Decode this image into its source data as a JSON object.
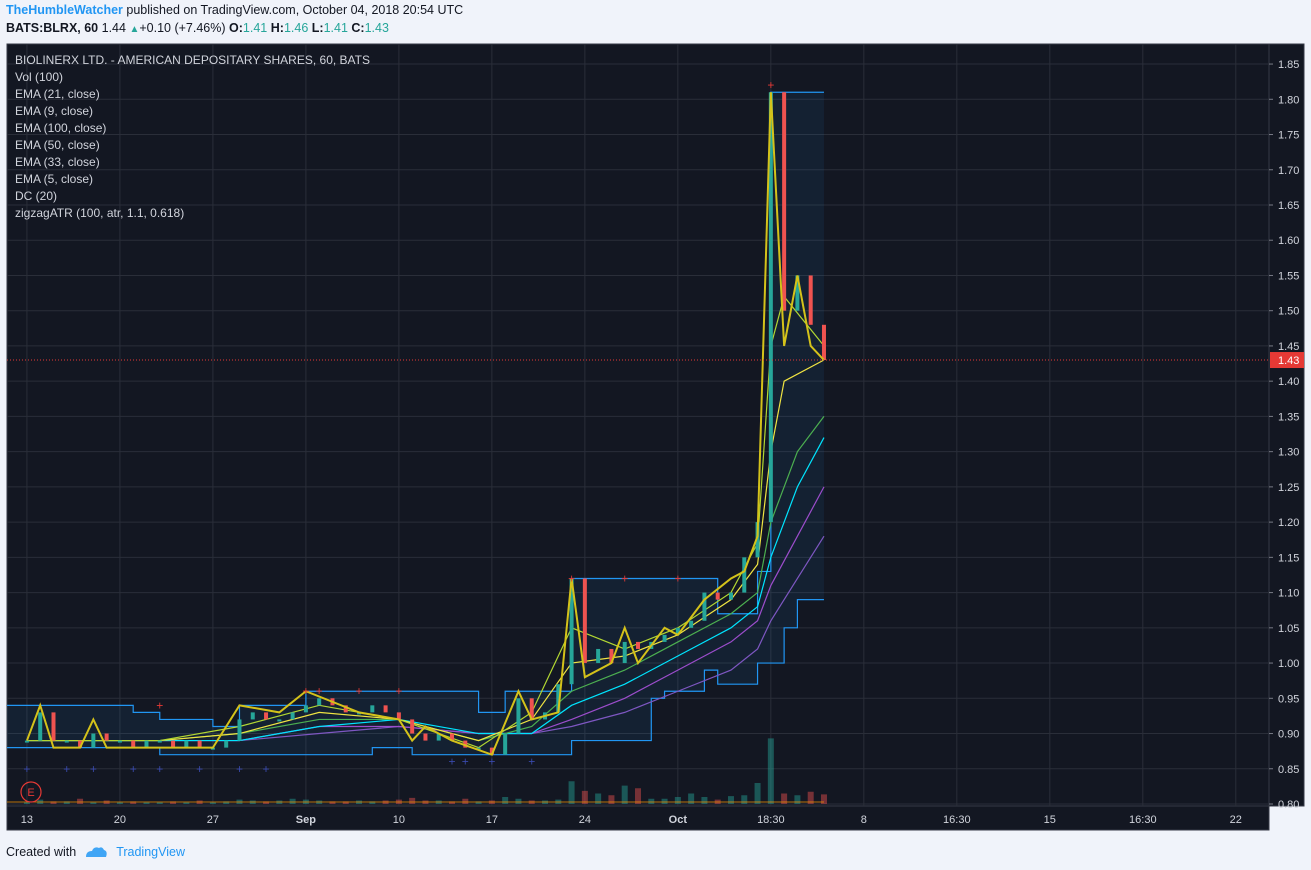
{
  "header": {
    "publisher": "TheHumbleWatcher",
    "published_text": " published on TradingView.com, October 04, 2018 20:54 UTC",
    "symbol": "BATS:BLRX, 60",
    "last": "1.44",
    "change": "+0.10 (+7.46%)",
    "open_label": "O:",
    "open": "1.41",
    "high_label": "H:",
    "high": "1.46",
    "low_label": "L:",
    "low": "1.41",
    "close_label": "C:",
    "close": "1.43"
  },
  "legend": [
    "BIOLINERX LTD. - AMERICAN DEPOSITARY SHARES, 60, BATS",
    "Vol (100)",
    "EMA (21, close)",
    "EMA (9, close)",
    "EMA (100, close)",
    "EMA (50, close)",
    "EMA (33, close)",
    "EMA (5, close)",
    "DC (20)",
    "zigzagATR (100, atr, 1.1, 0.618)"
  ],
  "price_tag": "1.43",
  "earnings_marker": "E",
  "footer": {
    "created_with": "Created with",
    "brand": "TradingView"
  },
  "colors": {
    "background": "#131722",
    "grid": "#2a2e39",
    "up": "#26a69a",
    "down": "#ef5350",
    "donchian": "#2196f3",
    "zigzag": "#d4c21a",
    "ema5": "#b2d732",
    "ema9": "#f0e442",
    "ema21": "#4caf50",
    "ema33": "#00e5ff",
    "ema50": "#9c4dcc",
    "ema100": "#7e57c2",
    "high_marker": "#e53935",
    "low_marker": "#3949ab"
  },
  "chart_data": {
    "type": "line",
    "ylim": [
      0.8,
      1.86
    ],
    "y_ticks": [
      "1.85",
      "1.80",
      "1.75",
      "1.70",
      "1.65",
      "1.60",
      "1.55",
      "1.50",
      "1.45",
      "1.40",
      "1.35",
      "1.30",
      "1.25",
      "1.20",
      "1.15",
      "1.10",
      "1.05",
      "1.00",
      "0.95",
      "0.90",
      "0.85",
      "0.80"
    ],
    "x_ticks": [
      "13",
      "20",
      "27",
      "Sep",
      "10",
      "17",
      "24",
      "Oct",
      "18:30",
      "8",
      "16:30",
      "15",
      "16:30",
      "22"
    ],
    "x_tick_index": [
      0,
      7,
      14,
      21,
      28,
      35,
      42,
      49,
      56,
      63,
      70,
      77,
      84,
      91
    ],
    "x_range": [
      -1.5,
      93.5
    ],
    "current_price": 1.43,
    "price_approx": [
      [
        0,
        0.89
      ],
      [
        1,
        0.93
      ],
      [
        2,
        0.89
      ],
      [
        3,
        0.89
      ],
      [
        4,
        0.88
      ],
      [
        5,
        0.9
      ],
      [
        6,
        0.89
      ],
      [
        7,
        0.89
      ],
      [
        8,
        0.88
      ],
      [
        9,
        0.89
      ],
      [
        10,
        0.89
      ],
      [
        11,
        0.88
      ],
      [
        12,
        0.89
      ],
      [
        13,
        0.88
      ],
      [
        14,
        0.88
      ],
      [
        15,
        0.89
      ],
      [
        16,
        0.92
      ],
      [
        17,
        0.93
      ],
      [
        18,
        0.92
      ],
      [
        19,
        0.92
      ],
      [
        20,
        0.93
      ],
      [
        21,
        0.94
      ],
      [
        22,
        0.95
      ],
      [
        23,
        0.94
      ],
      [
        24,
        0.93
      ],
      [
        25,
        0.93
      ],
      [
        26,
        0.94
      ],
      [
        27,
        0.93
      ],
      [
        28,
        0.92
      ],
      [
        29,
        0.9
      ],
      [
        30,
        0.89
      ],
      [
        31,
        0.9
      ],
      [
        32,
        0.89
      ],
      [
        33,
        0.88
      ],
      [
        34,
        0.88
      ],
      [
        35,
        0.87
      ],
      [
        36,
        0.9
      ],
      [
        37,
        0.95
      ],
      [
        38,
        0.92
      ],
      [
        39,
        0.93
      ],
      [
        40,
        0.97
      ],
      [
        41,
        1.12
      ],
      [
        42,
        1.0
      ],
      [
        43,
        1.02
      ],
      [
        44,
        1.0
      ],
      [
        45,
        1.03
      ],
      [
        46,
        1.02
      ],
      [
        47,
        1.03
      ],
      [
        48,
        1.04
      ],
      [
        49,
        1.05
      ],
      [
        50,
        1.06
      ],
      [
        51,
        1.1
      ],
      [
        52,
        1.09
      ],
      [
        53,
        1.1
      ],
      [
        54,
        1.15
      ],
      [
        55,
        1.2
      ],
      [
        56,
        1.81
      ],
      [
        57,
        1.5
      ],
      [
        58,
        1.55
      ],
      [
        59,
        1.48
      ],
      [
        60,
        1.43
      ]
    ],
    "volume_approx": [
      [
        0,
        0.2
      ],
      [
        1,
        0.5
      ],
      [
        2,
        0.3
      ],
      [
        3,
        0.3
      ],
      [
        4,
        0.6
      ],
      [
        5,
        0.2
      ],
      [
        6,
        0.4
      ],
      [
        7,
        0.2
      ],
      [
        8,
        0.3
      ],
      [
        9,
        0.2
      ],
      [
        10,
        0.2
      ],
      [
        11,
        0.3
      ],
      [
        12,
        0.2
      ],
      [
        13,
        0.4
      ],
      [
        14,
        0.2
      ],
      [
        15,
        0.3
      ],
      [
        16,
        0.5
      ],
      [
        17,
        0.4
      ],
      [
        18,
        0.3
      ],
      [
        19,
        0.4
      ],
      [
        20,
        0.6
      ],
      [
        21,
        0.5
      ],
      [
        22,
        0.4
      ],
      [
        23,
        0.3
      ],
      [
        24,
        0.3
      ],
      [
        25,
        0.4
      ],
      [
        26,
        0.3
      ],
      [
        27,
        0.4
      ],
      [
        28,
        0.5
      ],
      [
        29,
        0.7
      ],
      [
        30,
        0.4
      ],
      [
        31,
        0.4
      ],
      [
        32,
        0.3
      ],
      [
        33,
        0.6
      ],
      [
        34,
        0.3
      ],
      [
        35,
        0.4
      ],
      [
        36,
        0.8
      ],
      [
        37,
        0.6
      ],
      [
        38,
        0.4
      ],
      [
        39,
        0.4
      ],
      [
        40,
        0.5
      ],
      [
        41,
        2.6
      ],
      [
        42,
        1.5
      ],
      [
        43,
        1.2
      ],
      [
        44,
        1.0
      ],
      [
        45,
        2.1
      ],
      [
        46,
        1.8
      ],
      [
        47,
        0.6
      ],
      [
        48,
        0.6
      ],
      [
        49,
        0.8
      ],
      [
        50,
        1.2
      ],
      [
        51,
        0.8
      ],
      [
        52,
        0.5
      ],
      [
        53,
        0.9
      ],
      [
        54,
        1.0
      ],
      [
        55,
        2.4
      ],
      [
        56,
        7.5
      ],
      [
        57,
        1.2
      ],
      [
        58,
        1.0
      ],
      [
        59,
        1.4
      ],
      [
        60,
        1.1
      ]
    ],
    "donchian_upper": [
      [
        -1.5,
        0.94
      ],
      [
        8,
        0.93
      ],
      [
        10,
        0.92
      ],
      [
        14,
        0.91
      ],
      [
        16,
        0.94
      ],
      [
        21,
        0.96
      ],
      [
        32,
        0.96
      ],
      [
        34,
        0.93
      ],
      [
        36,
        0.96
      ],
      [
        41,
        1.12
      ],
      [
        51,
        1.12
      ],
      [
        52,
        1.07
      ],
      [
        55,
        1.13
      ],
      [
        56,
        1.81
      ],
      [
        60,
        1.81
      ]
    ],
    "donchian_lower": [
      [
        -1.5,
        0.88
      ],
      [
        10,
        0.87
      ],
      [
        14,
        0.87
      ],
      [
        21,
        0.87
      ],
      [
        26,
        0.88
      ],
      [
        29,
        0.87
      ],
      [
        40,
        0.87
      ],
      [
        41,
        0.89
      ],
      [
        47,
        0.95
      ],
      [
        48,
        0.96
      ],
      [
        51,
        0.99
      ],
      [
        52,
        0.97
      ],
      [
        55,
        1.0
      ],
      [
        57,
        1.05
      ],
      [
        58,
        1.09
      ],
      [
        60,
        1.09
      ]
    ],
    "zigzag": [
      [
        0,
        0.89
      ],
      [
        1,
        0.94
      ],
      [
        2,
        0.88
      ],
      [
        4,
        0.88
      ],
      [
        5,
        0.92
      ],
      [
        6,
        0.88
      ],
      [
        8,
        0.88
      ],
      [
        12,
        0.88
      ],
      [
        14,
        0.88
      ],
      [
        16,
        0.94
      ],
      [
        19,
        0.93
      ],
      [
        21,
        0.96
      ],
      [
        25,
        0.93
      ],
      [
        28,
        0.92
      ],
      [
        29,
        0.89
      ],
      [
        30,
        0.91
      ],
      [
        32,
        0.89
      ],
      [
        35,
        0.87
      ],
      [
        37,
        0.96
      ],
      [
        38,
        0.92
      ],
      [
        40,
        0.93
      ],
      [
        41,
        1.12
      ],
      [
        42,
        0.98
      ],
      [
        44,
        1.0
      ],
      [
        45,
        1.05
      ],
      [
        46,
        1.0
      ],
      [
        48,
        1.05
      ],
      [
        49,
        1.04
      ],
      [
        51,
        1.09
      ],
      [
        53,
        1.12
      ],
      [
        54,
        1.13
      ],
      [
        55,
        1.18
      ],
      [
        56,
        1.81
      ],
      [
        57,
        1.45
      ],
      [
        58,
        1.55
      ],
      [
        59,
        1.45
      ],
      [
        60,
        1.43
      ]
    ],
    "ema5": [
      [
        0,
        0.89
      ],
      [
        10,
        0.89
      ],
      [
        16,
        0.91
      ],
      [
        22,
        0.94
      ],
      [
        28,
        0.92
      ],
      [
        34,
        0.88
      ],
      [
        38,
        0.93
      ],
      [
        41,
        1.05
      ],
      [
        45,
        1.02
      ],
      [
        49,
        1.05
      ],
      [
        53,
        1.1
      ],
      [
        55,
        1.17
      ],
      [
        56,
        1.45
      ],
      [
        57,
        1.52
      ],
      [
        60,
        1.45
      ]
    ],
    "ema9": [
      [
        0,
        0.89
      ],
      [
        10,
        0.89
      ],
      [
        16,
        0.9
      ],
      [
        22,
        0.93
      ],
      [
        28,
        0.92
      ],
      [
        34,
        0.89
      ],
      [
        38,
        0.92
      ],
      [
        41,
        1.0
      ],
      [
        45,
        1.01
      ],
      [
        49,
        1.04
      ],
      [
        53,
        1.09
      ],
      [
        55,
        1.14
      ],
      [
        56,
        1.3
      ],
      [
        57,
        1.4
      ],
      [
        60,
        1.43
      ]
    ],
    "ema21": [
      [
        0,
        0.89
      ],
      [
        10,
        0.89
      ],
      [
        16,
        0.9
      ],
      [
        22,
        0.92
      ],
      [
        28,
        0.92
      ],
      [
        34,
        0.89
      ],
      [
        38,
        0.91
      ],
      [
        41,
        0.96
      ],
      [
        45,
        0.99
      ],
      [
        49,
        1.03
      ],
      [
        53,
        1.07
      ],
      [
        55,
        1.1
      ],
      [
        56,
        1.2
      ],
      [
        58,
        1.3
      ],
      [
        60,
        1.35
      ]
    ],
    "ema33": [
      [
        0,
        0.89
      ],
      [
        10,
        0.89
      ],
      [
        16,
        0.89
      ],
      [
        22,
        0.91
      ],
      [
        28,
        0.92
      ],
      [
        34,
        0.9
      ],
      [
        38,
        0.9
      ],
      [
        41,
        0.94
      ],
      [
        45,
        0.97
      ],
      [
        49,
        1.01
      ],
      [
        53,
        1.05
      ],
      [
        55,
        1.08
      ],
      [
        56,
        1.15
      ],
      [
        58,
        1.25
      ],
      [
        60,
        1.32
      ]
    ],
    "ema50": [
      [
        0,
        0.89
      ],
      [
        10,
        0.89
      ],
      [
        16,
        0.89
      ],
      [
        22,
        0.91
      ],
      [
        28,
        0.91
      ],
      [
        34,
        0.9
      ],
      [
        38,
        0.9
      ],
      [
        41,
        0.92
      ],
      [
        45,
        0.95
      ],
      [
        49,
        0.99
      ],
      [
        53,
        1.03
      ],
      [
        55,
        1.06
      ],
      [
        56,
        1.11
      ],
      [
        58,
        1.18
      ],
      [
        60,
        1.25
      ]
    ],
    "ema100": [
      [
        0,
        0.89
      ],
      [
        10,
        0.89
      ],
      [
        16,
        0.89
      ],
      [
        22,
        0.9
      ],
      [
        28,
        0.91
      ],
      [
        34,
        0.9
      ],
      [
        38,
        0.9
      ],
      [
        41,
        0.91
      ],
      [
        45,
        0.93
      ],
      [
        49,
        0.96
      ],
      [
        53,
        0.99
      ],
      [
        55,
        1.02
      ],
      [
        56,
        1.06
      ],
      [
        58,
        1.12
      ],
      [
        60,
        1.18
      ]
    ],
    "high_markers": [
      [
        10,
        0.94
      ],
      [
        21,
        0.96
      ],
      [
        22,
        0.96
      ],
      [
        25,
        0.96
      ],
      [
        28,
        0.96
      ],
      [
        41,
        1.12
      ],
      [
        45,
        1.12
      ],
      [
        49,
        1.12
      ],
      [
        56,
        1.82
      ]
    ],
    "low_markers": [
      [
        0,
        0.85
      ],
      [
        3,
        0.85
      ],
      [
        5,
        0.85
      ],
      [
        8,
        0.85
      ],
      [
        10,
        0.85
      ],
      [
        13,
        0.85
      ],
      [
        16,
        0.85
      ],
      [
        18,
        0.85
      ],
      [
        32,
        0.86
      ],
      [
        33,
        0.86
      ],
      [
        35,
        0.86
      ],
      [
        38,
        0.86
      ]
    ]
  }
}
